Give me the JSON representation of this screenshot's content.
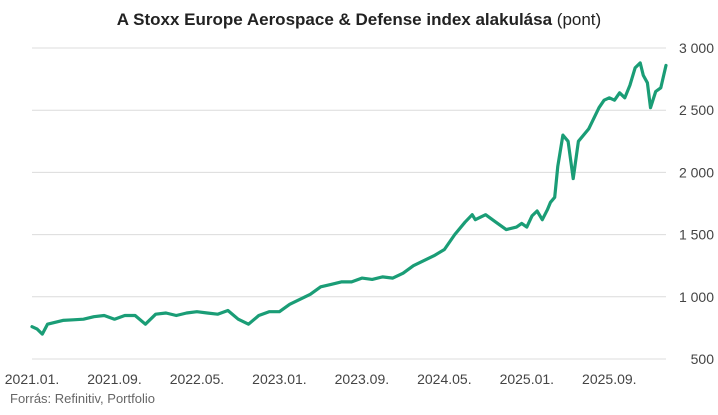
{
  "chart_data": {
    "type": "line",
    "title": "A Stoxx Europe Aerospace & Defense index alakulása",
    "title_unit": "(pont)",
    "source": "Forrás: Refinitiv, Portfolio",
    "x_tick_labels": [
      "2021.01.",
      "2021.09.",
      "2022.05.",
      "2023.01.",
      "2023.09.",
      "2024.05.",
      "2025.01.",
      "2025.09."
    ],
    "y_tick_labels": [
      "500",
      "1 000",
      "1 500",
      "2 000",
      "2 500",
      "3 000"
    ],
    "y_ticks": [
      500,
      1000,
      1500,
      2000,
      2500,
      3000
    ],
    "ylim": [
      500,
      3000
    ],
    "xlim_months": [
      0,
      61.5
    ],
    "grid": true,
    "series": [
      {
        "name": "Stoxx Europe Aerospace & Defense",
        "color": "#1a9d76",
        "x_months": [
          0,
          0.5,
          1,
          1.5,
          2,
          3,
          4,
          5,
          6,
          7,
          8,
          9,
          10,
          11,
          12,
          13,
          14,
          15,
          16,
          17,
          18,
          19,
          20,
          21,
          22,
          23,
          24,
          25,
          26,
          27,
          28,
          29,
          30,
          31,
          32,
          33,
          34,
          35,
          36,
          37,
          38,
          39,
          40,
          41,
          42,
          42.7,
          43,
          43.5,
          44,
          45,
          46,
          47,
          47.5,
          48,
          48.5,
          49,
          49.5,
          50,
          50.3,
          50.7,
          51,
          51.5,
          52,
          52.5,
          53,
          54,
          55,
          55.5,
          56,
          56.5,
          57,
          57.5,
          58,
          58.5,
          59,
          59.3,
          59.7,
          60,
          60.5,
          61,
          61.5
        ],
        "values": [
          760,
          740,
          700,
          780,
          790,
          810,
          815,
          820,
          840,
          850,
          820,
          850,
          850,
          780,
          860,
          870,
          850,
          870,
          880,
          870,
          860,
          890,
          820,
          780,
          850,
          880,
          880,
          940,
          980,
          1020,
          1080,
          1100,
          1120,
          1120,
          1150,
          1140,
          1160,
          1150,
          1190,
          1250,
          1290,
          1330,
          1380,
          1500,
          1600,
          1660,
          1620,
          1640,
          1660,
          1600,
          1540,
          1560,
          1590,
          1560,
          1650,
          1690,
          1620,
          1700,
          1760,
          1800,
          2050,
          2300,
          2250,
          1950,
          2250,
          2350,
          2520,
          2580,
          2600,
          2580,
          2640,
          2600,
          2700,
          2840,
          2880,
          2780,
          2720,
          2520,
          2650,
          2680,
          2860
        ]
      }
    ]
  }
}
